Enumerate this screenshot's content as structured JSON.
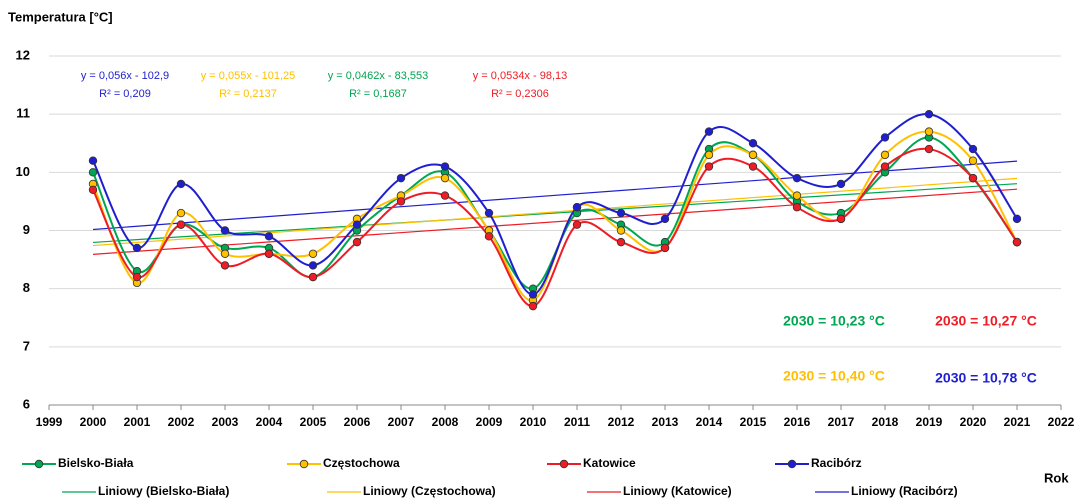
{
  "chart_data": {
    "type": "line",
    "y_label": "Temperatura [°C]",
    "x_label": "Rok",
    "x": [
      2000,
      2001,
      2002,
      2003,
      2004,
      2005,
      2006,
      2007,
      2008,
      2009,
      2010,
      2011,
      2012,
      2013,
      2014,
      2015,
      2016,
      2017,
      2018,
      2019,
      2020,
      2021
    ],
    "series": [
      {
        "name": "Bielsko-Biała",
        "trend_name": "Liniowy (Bielsko-Biała)",
        "color": "#00a651",
        "values": [
          10.0,
          8.3,
          9.1,
          8.7,
          8.7,
          8.2,
          9.0,
          9.6,
          10.0,
          9.0,
          8.0,
          9.3,
          9.1,
          8.8,
          10.4,
          10.3,
          9.5,
          9.3,
          10.0,
          10.6,
          9.9,
          8.8
        ]
      },
      {
        "name": "Częstochowa",
        "trend_name": "Liniowy (Częstochowa)",
        "color": "#ffc000",
        "values": [
          9.8,
          8.1,
          9.3,
          8.6,
          8.6,
          8.6,
          9.2,
          9.6,
          9.9,
          9.0,
          7.8,
          9.4,
          9.0,
          8.7,
          10.3,
          10.3,
          9.6,
          9.2,
          10.3,
          10.7,
          10.2,
          8.8
        ]
      },
      {
        "name": "Katowice",
        "trend_name": "Liniowy (Katowice)",
        "color": "#ee1c25",
        "values": [
          9.7,
          8.2,
          9.1,
          8.4,
          8.6,
          8.2,
          8.8,
          9.5,
          9.6,
          8.9,
          7.7,
          9.1,
          8.8,
          8.7,
          10.1,
          10.1,
          9.4,
          9.2,
          10.1,
          10.4,
          9.9,
          8.8
        ]
      },
      {
        "name": "Racibórz",
        "trend_name": "Liniowy (Racibórz)",
        "color": "#1f1fd0",
        "values": [
          10.2,
          8.7,
          9.8,
          9.0,
          8.9,
          8.4,
          9.1,
          9.9,
          10.1,
          9.3,
          7.9,
          9.4,
          9.3,
          9.2,
          10.7,
          10.5,
          9.9,
          9.8,
          10.6,
          11.0,
          10.4,
          9.2
        ]
      }
    ],
    "xlim": [
      1999,
      2022
    ],
    "xticks": [
      1999,
      2000,
      2001,
      2002,
      2003,
      2004,
      2005,
      2006,
      2007,
      2008,
      2009,
      2010,
      2011,
      2012,
      2013,
      2014,
      2015,
      2016,
      2017,
      2018,
      2019,
      2020,
      2021,
      2022
    ],
    "ylim": [
      6,
      12
    ],
    "yticks": [
      6,
      7,
      8,
      9,
      10,
      11,
      12
    ],
    "grid": true,
    "equations": [
      {
        "lines": [
          "y = 0,056x - 102,9",
          "R² = 0,209"
        ],
        "color": "#1f1fd0"
      },
      {
        "lines": [
          "y = 0,055x - 101,25",
          "R² = 0,2137"
        ],
        "color": "#ffc000"
      },
      {
        "lines": [
          "y = 0,0462x - 83,553",
          "R² = 0,1687"
        ],
        "color": "#00a651"
      },
      {
        "lines": [
          "y = 0,0534x - 98,13",
          "R² = 0,2306"
        ],
        "color": "#ee1c25"
      }
    ],
    "forecasts": [
      {
        "text": "2030 = 10,23 °C",
        "color": "#00a651"
      },
      {
        "text": "2030 = 10,27 °C",
        "color": "#ee1c25"
      },
      {
        "text": "2030 = 10,40 °C",
        "color": "#ffc000"
      },
      {
        "text": "2030 = 10,78 °C",
        "color": "#1f1fd0"
      }
    ]
  }
}
